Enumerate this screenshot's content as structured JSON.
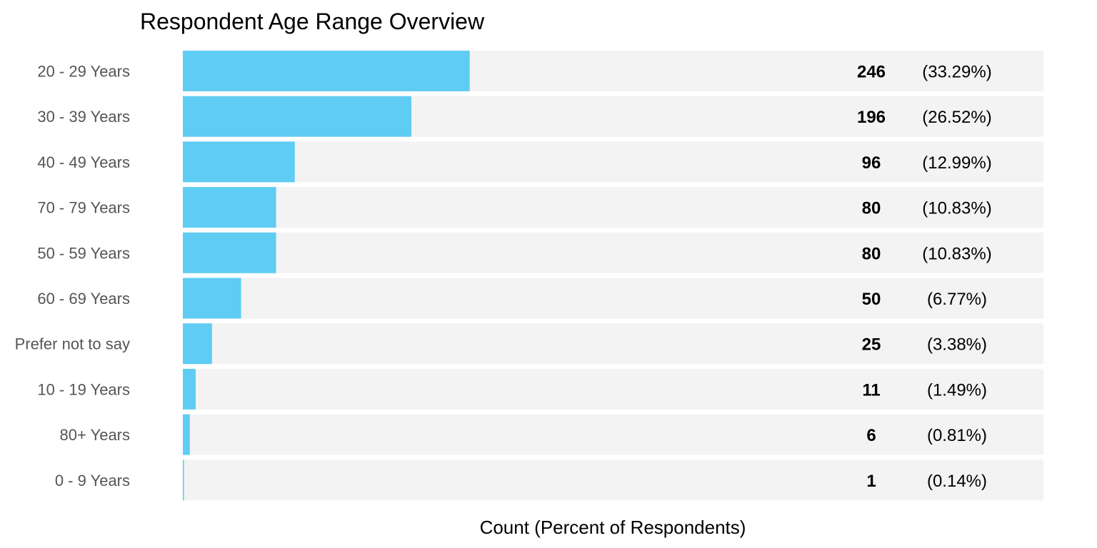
{
  "chart_data": {
    "type": "bar",
    "orientation": "horizontal",
    "title": "Respondent Age Range Overview",
    "xlabel": "Count (Percent of Respondents)",
    "ylabel": "",
    "xlim": [
      0,
      738
    ],
    "categories": [
      "20 - 29 Years",
      "30 - 39 Years",
      "40 - 49 Years",
      "70 - 79 Years",
      "50 - 59 Years",
      "60 - 69 Years",
      "Prefer not to say",
      "10 - 19 Years",
      "80+ Years",
      "0 - 9 Years"
    ],
    "values": [
      246,
      196,
      96,
      80,
      80,
      50,
      25,
      11,
      6,
      1
    ],
    "count_labels": [
      "246",
      "196",
      "96",
      "80",
      "80",
      "50",
      "25",
      "11",
      "6",
      "1"
    ],
    "percent_labels": [
      "(33.29%)",
      "(26.52%)",
      "(12.99%)",
      "(10.83%)",
      "(10.83%)",
      "(6.77%)",
      "(3.38%)",
      "(1.49%)",
      "(0.81%)",
      "(0.14%)"
    ],
    "bar_color": "#5fcdf3",
    "track_color": "#f3f3f3",
    "grid": false,
    "legend": "none"
  }
}
